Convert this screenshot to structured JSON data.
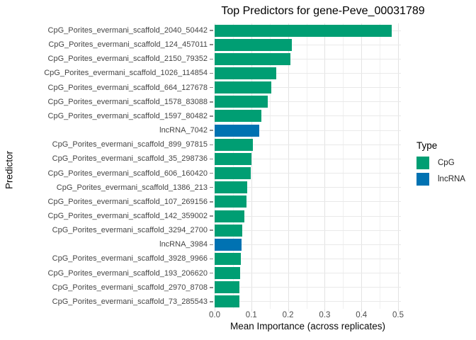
{
  "title": "Top Predictors for gene-Peve_00031789",
  "colors": {
    "background": "#ffffff",
    "grid_major": "#e3e3e3",
    "grid_minor": "#f0f0f0",
    "type_colors": {
      "CpG": "#009E73",
      "lncRNA": "#0072B2"
    }
  },
  "legend": {
    "title": "Type",
    "items": [
      {
        "label": "CpG",
        "color": "#009E73"
      },
      {
        "label": "lncRNA",
        "color": "#0072B2"
      }
    ]
  },
  "chart_data": {
    "type": "bar",
    "orientation": "horizontal",
    "title": "Top Predictors for gene-Peve_00031789",
    "xlabel": "Mean Importance (across replicates)",
    "ylabel": "Predictor",
    "xlim": [
      0,
      0.5
    ],
    "grid": true,
    "legend_position": "right",
    "series_field": "Type",
    "x_major_ticks": [
      0,
      0.1,
      0.2,
      0.3,
      0.4,
      0.5
    ],
    "x_tick_labels": [
      "0.0",
      "0.1",
      "0.2",
      "0.3",
      "0.4",
      "0.5"
    ],
    "x_minor_ticks": [
      0.05,
      0.15,
      0.25,
      0.35,
      0.45
    ],
    "rows": [
      {
        "label": "CpG_Porites_evermani_scaffold_2040_50442",
        "value": 0.482,
        "type": "CpG"
      },
      {
        "label": "CpG_Porites_evermani_scaffold_124_457011",
        "value": 0.21,
        "type": "CpG"
      },
      {
        "label": "CpG_Porites_evermani_scaffold_2150_79352",
        "value": 0.206,
        "type": "CpG"
      },
      {
        "label": "CpG_Porites_evermani_scaffold_1026_114854",
        "value": 0.167,
        "type": "CpG"
      },
      {
        "label": "CpG_Porites_evermani_scaffold_664_127678",
        "value": 0.154,
        "type": "CpG"
      },
      {
        "label": "CpG_Porites_evermani_scaffold_1578_83088",
        "value": 0.145,
        "type": "CpG"
      },
      {
        "label": "CpG_Porites_evermani_scaffold_1597_80482",
        "value": 0.128,
        "type": "CpG"
      },
      {
        "label": "lncRNA_7042",
        "value": 0.121,
        "type": "lncRNA"
      },
      {
        "label": "CpG_Porites_evermani_scaffold_899_97815",
        "value": 0.105,
        "type": "CpG"
      },
      {
        "label": "CpG_Porites_evermani_scaffold_35_298736",
        "value": 0.1,
        "type": "CpG"
      },
      {
        "label": "CpG_Porites_evermani_scaffold_606_160420",
        "value": 0.098,
        "type": "CpG"
      },
      {
        "label": "CpG_Porites_evermani_scaffold_1386_213",
        "value": 0.088,
        "type": "CpG"
      },
      {
        "label": "CpG_Porites_evermani_scaffold_107_269156",
        "value": 0.086,
        "type": "CpG"
      },
      {
        "label": "CpG_Porites_evermani_scaffold_142_359002",
        "value": 0.082,
        "type": "CpG"
      },
      {
        "label": "CpG_Porites_evermani_scaffold_3294_2700",
        "value": 0.076,
        "type": "CpG"
      },
      {
        "label": "lncRNA_3984",
        "value": 0.074,
        "type": "lncRNA"
      },
      {
        "label": "CpG_Porites_evermani_scaffold_3928_9966",
        "value": 0.072,
        "type": "CpG"
      },
      {
        "label": "CpG_Porites_evermani_scaffold_193_206620",
        "value": 0.07,
        "type": "CpG"
      },
      {
        "label": "CpG_Porites_evermani_scaffold_2970_8708",
        "value": 0.068,
        "type": "CpG"
      },
      {
        "label": "CpG_Porites_evermani_scaffold_73_285543",
        "value": 0.067,
        "type": "CpG"
      }
    ]
  }
}
